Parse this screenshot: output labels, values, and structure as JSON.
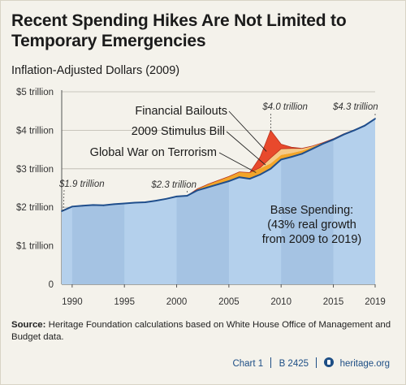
{
  "header": {
    "title_line1": "Recent Spending Hikes Are Not Limited to",
    "title_line2": "Temporary Emergencies",
    "subtitle": "Inflation-Adjusted Dollars (2009)"
  },
  "footer": {
    "source_label": "Source:",
    "source_text": "Heritage Foundation calculations based on White House Office of Management and Budget data.",
    "chart_id": "Chart 1",
    "report_id": "B 2425",
    "site": "heritage.org"
  },
  "colors": {
    "base": "#b4d0ec",
    "band": "#a5c3e3",
    "line": "#1f4e8c",
    "war": "#f2a52a",
    "stimulus": "#f6c987",
    "bailouts": "#e8492c",
    "text": "#1a1a1a"
  },
  "chart_data": {
    "type": "area",
    "ylabel": "",
    "xlabel": "",
    "ylim": [
      0,
      5
    ],
    "xlim": [
      1989,
      2019
    ],
    "x_ticks": [
      "1990",
      "1995",
      "2000",
      "2005",
      "2010",
      "2015",
      "2019"
    ],
    "y_ticks": [
      "0",
      "$1 trillion",
      "$2 trillion",
      "$3 trillion",
      "$4 trillion",
      "$5 trillion"
    ],
    "grid": true,
    "x": [
      1989,
      1990,
      1991,
      1992,
      1993,
      1994,
      1995,
      1996,
      1997,
      1998,
      1999,
      2000,
      2001,
      2002,
      2003,
      2004,
      2005,
      2006,
      2007,
      2008,
      2009,
      2010,
      2011,
      2012,
      2013,
      2014,
      2015,
      2016,
      2017,
      2018,
      2019
    ],
    "series": [
      {
        "name": "Base Spending",
        "values": [
          1.9,
          2.02,
          2.04,
          2.06,
          2.05,
          2.08,
          2.1,
          2.12,
          2.13,
          2.17,
          2.22,
          2.28,
          2.3,
          2.44,
          2.52,
          2.6,
          2.68,
          2.78,
          2.74,
          2.85,
          3.0,
          3.24,
          3.31,
          3.39,
          3.52,
          3.65,
          3.76,
          3.89,
          4.0,
          4.12,
          4.3
        ]
      },
      {
        "name": "Global War on Terrorism",
        "values": [
          0,
          0,
          0,
          0,
          0,
          0,
          0,
          0,
          0,
          0,
          0,
          0,
          0,
          0.04,
          0.08,
          0.1,
          0.12,
          0.14,
          0.16,
          0.16,
          0.14,
          0.12,
          0.1,
          0.08,
          0.05,
          0.03,
          0.02,
          0.02,
          0.01,
          0.01,
          0.01
        ]
      },
      {
        "name": "2009 Stimulus Bill",
        "values": [
          0,
          0,
          0,
          0,
          0,
          0,
          0,
          0,
          0,
          0,
          0,
          0,
          0,
          0,
          0,
          0,
          0,
          0,
          0,
          0.02,
          0.14,
          0.16,
          0.12,
          0.06,
          0.02,
          0,
          0,
          0,
          0,
          0,
          0
        ]
      },
      {
        "name": "Financial Bailouts",
        "values": [
          0,
          0,
          0,
          0,
          0,
          0,
          0,
          0,
          0,
          0,
          0,
          0,
          0,
          0,
          0,
          0,
          0,
          0,
          0,
          0.28,
          0.72,
          0.12,
          0.03,
          0,
          0,
          0,
          0,
          0,
          0,
          0,
          0
        ]
      }
    ],
    "legend": [
      "Financial Bailouts",
      "2009 Stimulus Bill",
      "Global War on Terrorism"
    ],
    "annotations": [
      {
        "text": "$1.9 trillion",
        "x": 1989,
        "y": 1.9
      },
      {
        "text": "$2.3 trillion",
        "x": 2001,
        "y": 2.3
      },
      {
        "text": "$4.0 trillion",
        "x": 2009,
        "y": 4.0
      },
      {
        "text": "$4.3 trillion",
        "x": 2019,
        "y": 4.3
      }
    ],
    "base_note": [
      "Base Spending:",
      "(43% real growth",
      "from 2009 to 2019)"
    ]
  }
}
